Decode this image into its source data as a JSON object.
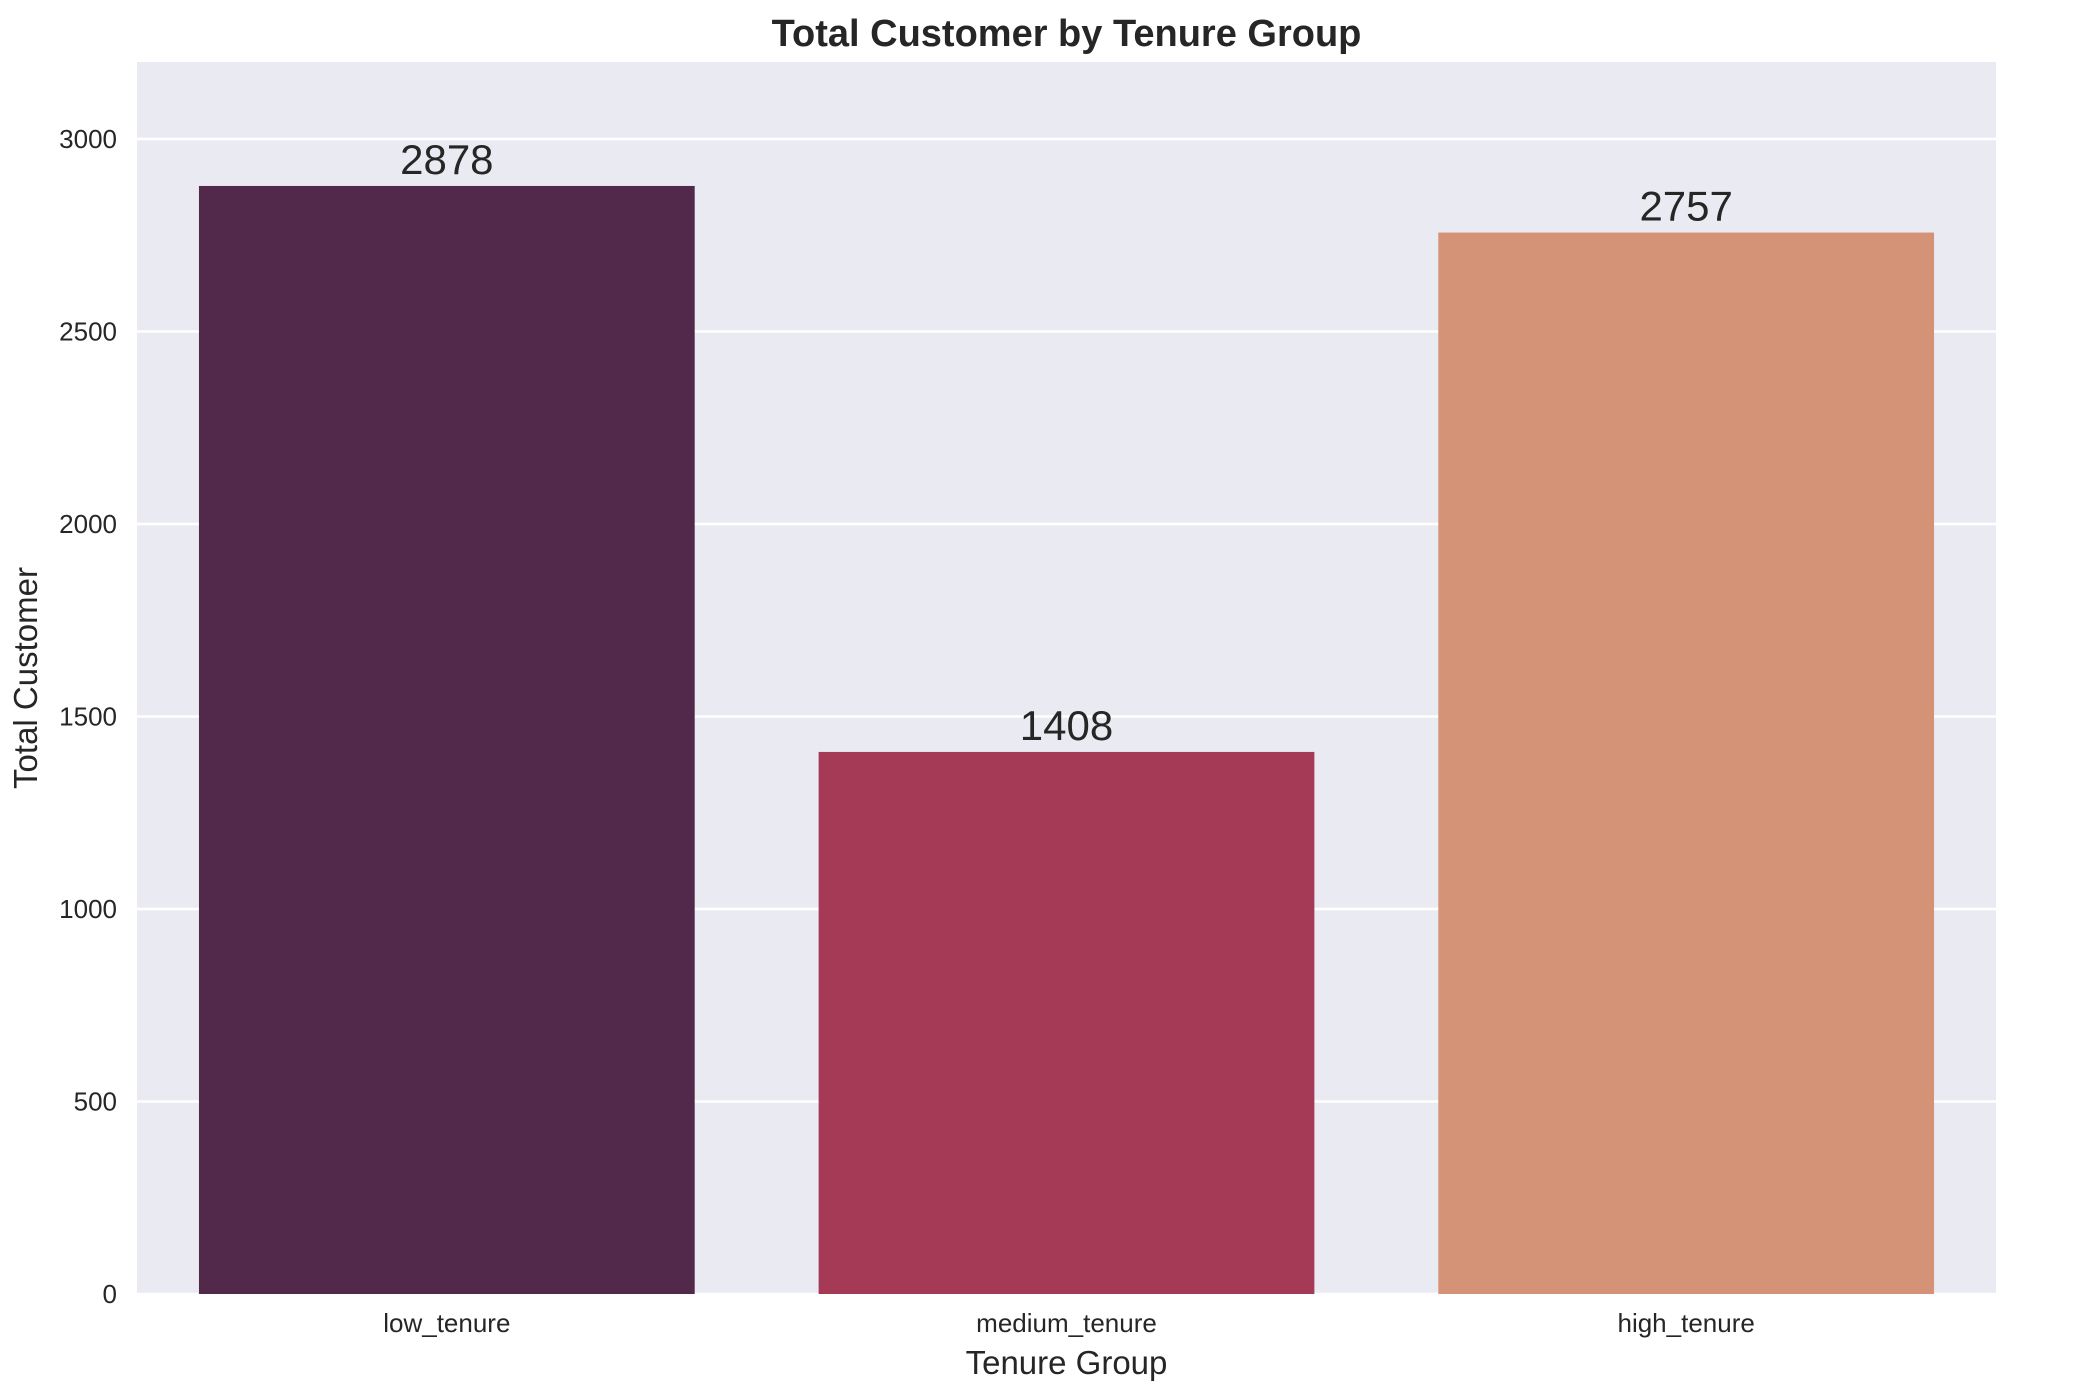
{
  "chart_data": {
    "type": "bar",
    "title": "Total Customer by Tenure Group",
    "xlabel": "Tenure Group",
    "ylabel": "Total Customer",
    "categories": [
      "low_tenure",
      "medium_tenure",
      "high_tenure"
    ],
    "values": [
      2878,
      1408,
      2757
    ],
    "data_labels": [
      "2878",
      "1408",
      "2757"
    ],
    "bar_colors": [
      "#52294b",
      "#a53a56",
      "#d49376"
    ],
    "ylim": [
      0,
      3200
    ],
    "yticks": [
      0,
      500,
      1000,
      1500,
      2000,
      2500,
      3000
    ],
    "ytick_labels": [
      "0",
      "500",
      "1000",
      "1500",
      "2000",
      "2500",
      "3000"
    ],
    "grid": true,
    "legend": "none",
    "plot_background": "#eaeaf2",
    "grid_color": "#ffffff",
    "text_color": "#262626"
  }
}
